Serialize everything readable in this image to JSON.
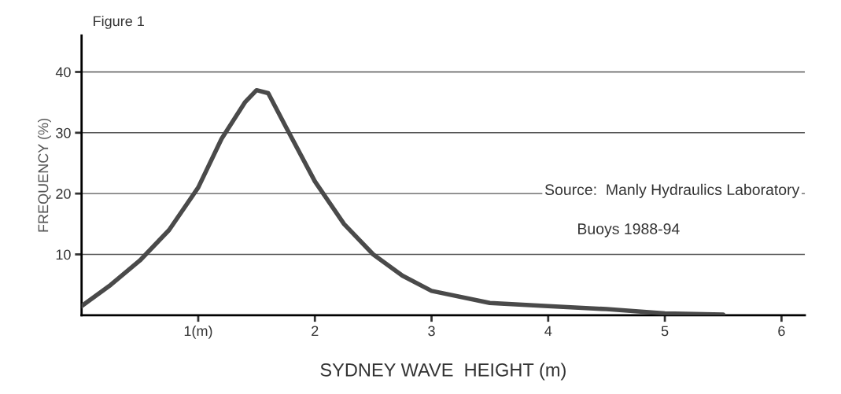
{
  "chart_data": {
    "type": "line",
    "title": "Figure 1",
    "xlabel": "SYDNEY WAVE  HEIGHT (m)",
    "ylabel": "FREQUENCY (%)",
    "x": [
      0,
      0.25,
      0.5,
      0.75,
      1,
      1.2,
      1.4,
      1.5,
      1.6,
      1.75,
      2,
      2.25,
      2.5,
      2.75,
      3,
      3.5,
      4,
      4.5,
      5,
      5.5
    ],
    "series": [
      {
        "color": "#4a4a4a",
        "values": [
          1.5,
          5,
          9,
          14,
          21,
          29,
          35,
          37,
          36.5,
          31,
          22,
          15,
          10,
          6.5,
          4,
          2,
          1.5,
          1,
          0.3,
          0.1
        ]
      }
    ],
    "xlim": [
      0,
      6.2
    ],
    "ylim": [
      0,
      46
    ],
    "xticks": [
      {
        "value": 1,
        "label": "1(m)"
      },
      2,
      3,
      4,
      5,
      6
    ],
    "yticks": [
      10,
      20,
      30,
      40
    ],
    "grid": "y",
    "marker": "none",
    "line_style": "solid",
    "annotations": [
      "Source:  Manly Hydraulics Laboratory",
      "Buoys 1988-94"
    ]
  }
}
